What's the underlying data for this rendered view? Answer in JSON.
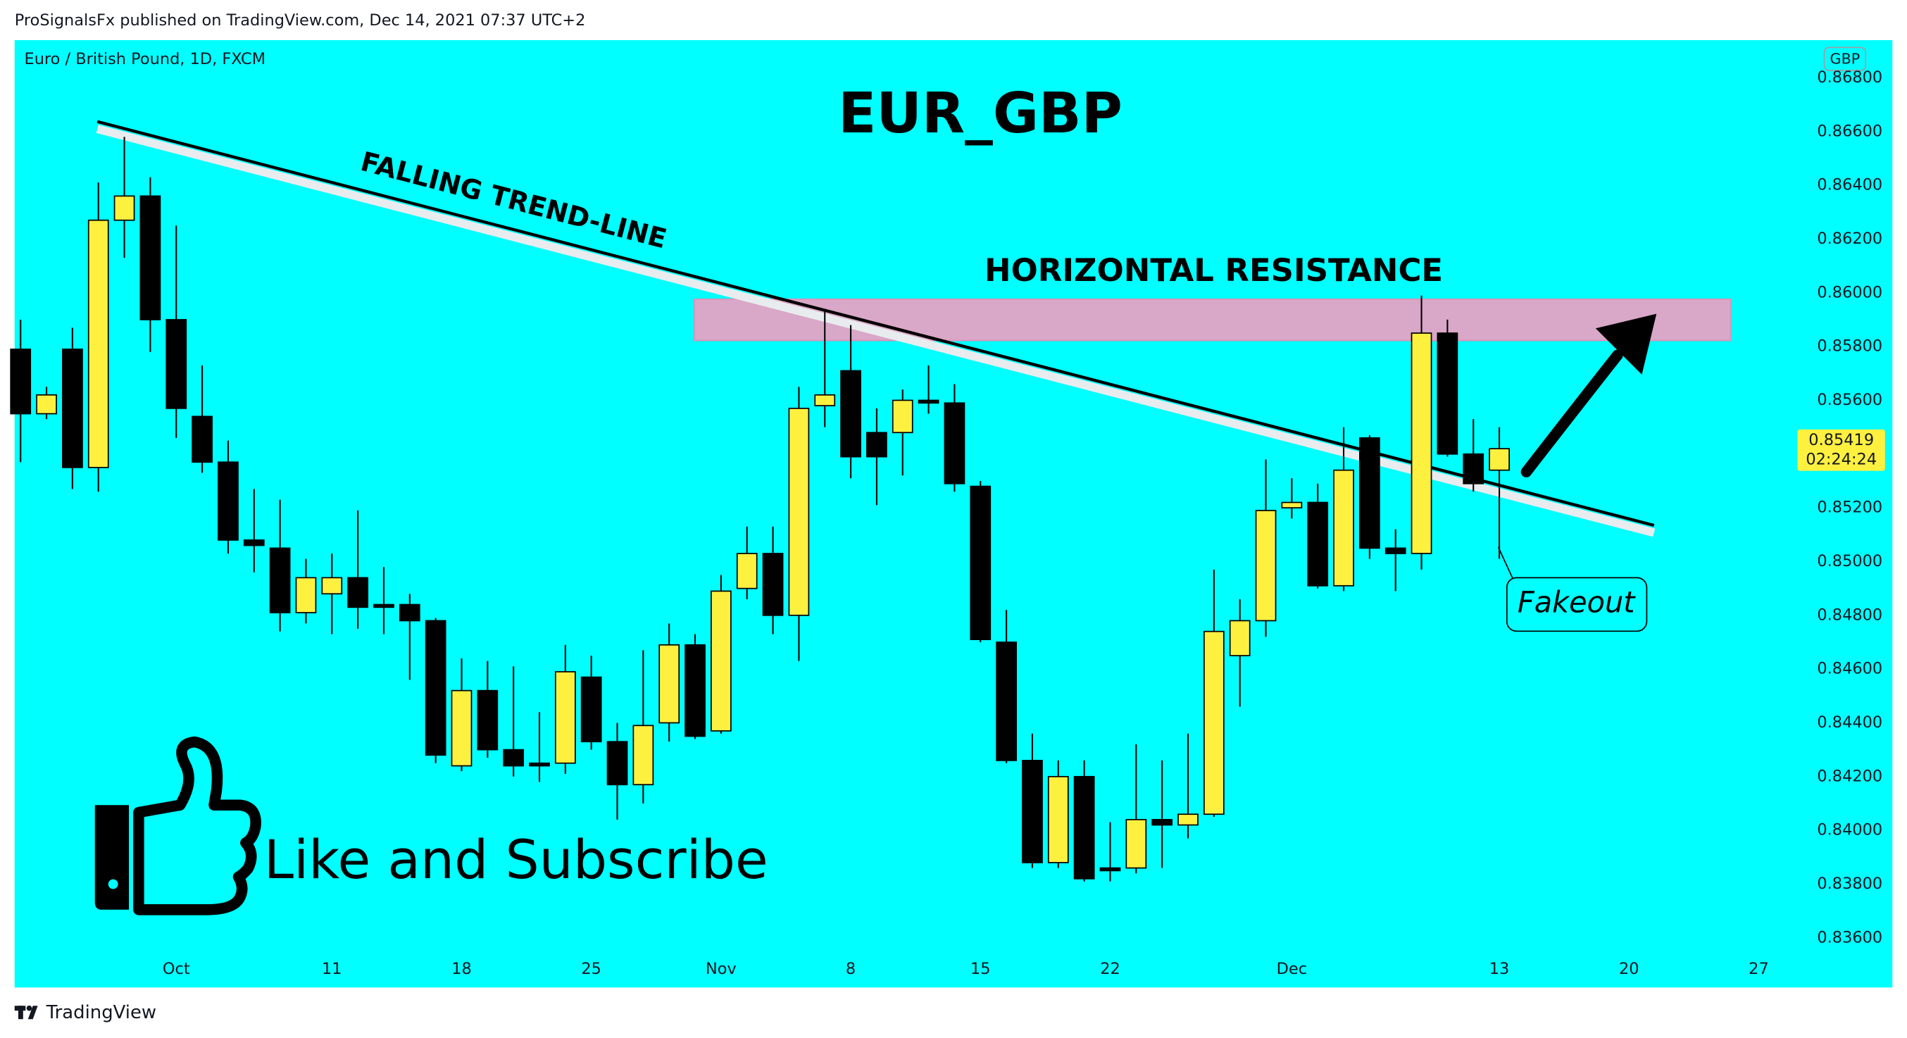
{
  "header": "ProSignalsFx published on TradingView.com, Dec 14, 2021 07:37 UTC+2",
  "footer": "TradingView",
  "chart_data": {
    "type": "candlestick",
    "title": "EUR_GBP",
    "subtitle": "Euro / British Pound, 1D, FXCM",
    "currency": "GBP",
    "annotations": [
      "FALLING TREND-LINE",
      "HORIZONTAL RESISTANCE",
      "Fakeout",
      "Like and Subscribe"
    ],
    "last_price": 0.85419,
    "countdown": "02:24:24",
    "up_color": "#fdf03f",
    "down_color": "#000000",
    "xlim": [
      -0.23,
      68.12
    ],
    "xticks": [
      {
        "value": 6,
        "label": "Oct"
      },
      {
        "value": 12,
        "label": "11"
      },
      {
        "value": 17,
        "label": "18"
      },
      {
        "value": 22,
        "label": "25"
      },
      {
        "value": 27,
        "label": "Nov"
      },
      {
        "value": 32,
        "label": "8"
      },
      {
        "value": 37,
        "label": "15"
      },
      {
        "value": 42,
        "label": "22"
      },
      {
        "value": 49,
        "label": "Dec"
      },
      {
        "value": 57,
        "label": "13"
      },
      {
        "value": 62,
        "label": "20"
      },
      {
        "value": 67,
        "label": "27"
      }
    ],
    "ylim": [
      0.8356,
      0.8694
    ],
    "yticks": [
      {
        "value": 0.868,
        "label": "0.86800"
      },
      {
        "value": 0.866,
        "label": "0.86600"
      },
      {
        "value": 0.864,
        "label": "0.86400"
      },
      {
        "value": 0.862,
        "label": "0.86200"
      },
      {
        "value": 0.86,
        "label": "0.86000"
      },
      {
        "value": 0.858,
        "label": "0.85800"
      },
      {
        "value": 0.856,
        "label": "0.85600"
      },
      {
        "value": 0.854,
        "label": "0.85400"
      },
      {
        "value": 0.852,
        "label": "0.85200"
      },
      {
        "value": 0.85,
        "label": "0.85000"
      },
      {
        "value": 0.848,
        "label": "0.84800"
      },
      {
        "value": 0.846,
        "label": "0.84600"
      },
      {
        "value": 0.844,
        "label": "0.84400"
      },
      {
        "value": 0.842,
        "label": "0.84200"
      },
      {
        "value": 0.84,
        "label": "0.84000"
      },
      {
        "value": 0.838,
        "label": "0.83800"
      },
      {
        "value": 0.836,
        "label": "0.83600"
      }
    ],
    "open": [
      0.8579,
      0.8555,
      0.8579,
      0.8535,
      0.8627,
      0.8636,
      0.859,
      0.8554,
      0.8537,
      0.8508,
      0.8505,
      0.8481,
      0.8488,
      0.8494,
      0.8484,
      0.8484,
      0.8478,
      0.8424,
      0.8452,
      0.843,
      0.8425,
      0.8425,
      0.8457,
      0.8433,
      0.8417,
      0.844,
      0.8469,
      0.8437,
      0.849,
      0.8503,
      0.848,
      0.8558,
      0.8571,
      0.8548,
      0.8548,
      0.856,
      0.8559,
      0.8528,
      0.847,
      0.8426,
      0.8388,
      0.842,
      0.8386,
      0.8386,
      0.8404,
      0.8402,
      0.8406,
      0.8465,
      0.8478,
      0.852,
      0.8522,
      0.8491,
      0.8546,
      0.8505,
      0.8503,
      0.8585,
      0.854,
      0.8534
    ],
    "high": [
      0.859,
      0.8565,
      0.8587,
      0.8641,
      0.8658,
      0.8643,
      0.8625,
      0.8573,
      0.8545,
      0.8527,
      0.8523,
      0.8501,
      0.8503,
      0.8519,
      0.8498,
      0.8488,
      0.8479,
      0.8464,
      0.8463,
      0.8461,
      0.8444,
      0.8469,
      0.8465,
      0.844,
      0.8467,
      0.8477,
      0.8473,
      0.8495,
      0.8513,
      0.8513,
      0.8565,
      0.8594,
      0.8588,
      0.8557,
      0.8564,
      0.8573,
      0.8566,
      0.853,
      0.8482,
      0.8436,
      0.8426,
      0.8426,
      0.8403,
      0.8432,
      0.8426,
      0.8436,
      0.8497,
      0.8486,
      0.8538,
      0.8531,
      0.8529,
      0.855,
      0.8547,
      0.8512,
      0.8599,
      0.859,
      0.8553,
      0.855
    ],
    "low": [
      0.8537,
      0.8553,
      0.8527,
      0.8526,
      0.8613,
      0.8578,
      0.8546,
      0.8533,
      0.8503,
      0.8496,
      0.8474,
      0.8477,
      0.8473,
      0.8475,
      0.8473,
      0.8456,
      0.8425,
      0.8422,
      0.8427,
      0.842,
      0.8418,
      0.8421,
      0.843,
      0.8404,
      0.841,
      0.8433,
      0.8434,
      0.8436,
      0.8486,
      0.8473,
      0.8463,
      0.855,
      0.8531,
      0.8521,
      0.8532,
      0.8555,
      0.8526,
      0.847,
      0.8425,
      0.8386,
      0.8386,
      0.8381,
      0.8381,
      0.8384,
      0.8386,
      0.8397,
      0.8405,
      0.8446,
      0.8472,
      0.8516,
      0.849,
      0.8489,
      0.8501,
      0.8489,
      0.8497,
      0.8539,
      0.8526,
      0.8501
    ],
    "close": [
      0.8555,
      0.8562,
      0.8535,
      0.8627,
      0.8636,
      0.859,
      0.8557,
      0.8537,
      0.8508,
      0.8506,
      0.8481,
      0.8494,
      0.8494,
      0.8483,
      0.8483,
      0.8478,
      0.8428,
      0.8452,
      0.843,
      0.8424,
      0.8424,
      0.8459,
      0.8433,
      0.8417,
      0.8439,
      0.8469,
      0.8435,
      0.8489,
      0.8503,
      0.848,
      0.8557,
      0.8562,
      0.8539,
      0.8539,
      0.856,
      0.8559,
      0.8529,
      0.8471,
      0.8426,
      0.8388,
      0.842,
      0.8382,
      0.8385,
      0.8404,
      0.8402,
      0.8406,
      0.8474,
      0.8478,
      0.8519,
      0.8522,
      0.8491,
      0.8534,
      0.8505,
      0.8503,
      0.8585,
      0.854,
      0.8529,
      0.8542
    ]
  }
}
